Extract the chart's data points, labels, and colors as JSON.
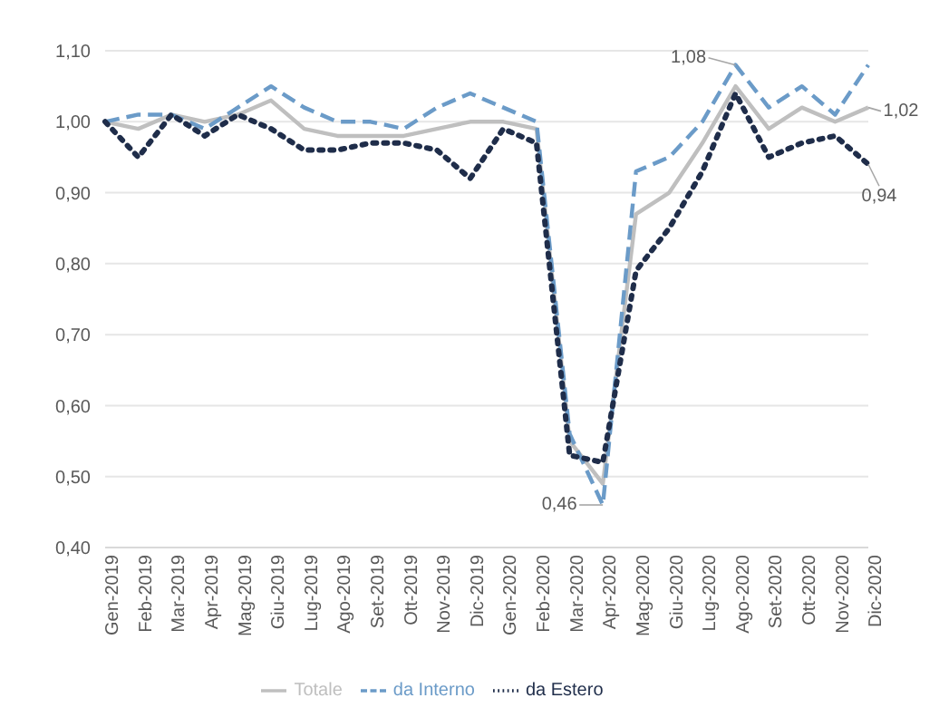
{
  "chart_data": {
    "type": "line",
    "categories": [
      "Gen-2019",
      "Feb-2019",
      "Mar-2019",
      "Apr-2019",
      "Mag-2019",
      "Giu-2019",
      "Lug-2019",
      "Ago-2019",
      "Set-2019",
      "Ott-2019",
      "Nov-2019",
      "Dic-2019",
      "Gen-2020",
      "Feb-2020",
      "Mar-2020",
      "Apr-2020",
      "Mag-2020",
      "Giu-2020",
      "Lug-2020",
      "Ago-2020",
      "Set-2020",
      "Ott-2020",
      "Nov-2020",
      "Dic-2020"
    ],
    "series": [
      {
        "name": "Totale",
        "color": "#bfbfbf",
        "line_style": "solid",
        "values": [
          1.0,
          0.99,
          1.01,
          1.0,
          1.01,
          1.03,
          0.99,
          0.98,
          0.98,
          0.98,
          0.99,
          1.0,
          1.0,
          0.99,
          0.55,
          0.49,
          0.87,
          0.9,
          0.97,
          1.05,
          0.99,
          1.02,
          1.0,
          1.02
        ]
      },
      {
        "name": "da Interno",
        "color": "#6b9bc8",
        "line_style": "dashed",
        "values": [
          1.0,
          1.01,
          1.01,
          0.99,
          1.02,
          1.05,
          1.02,
          1.0,
          1.0,
          0.99,
          1.02,
          1.04,
          1.02,
          1.0,
          0.56,
          0.46,
          0.93,
          0.95,
          1.0,
          1.08,
          1.02,
          1.05,
          1.01,
          1.08
        ]
      },
      {
        "name": "da Estero",
        "color": "#1f2d4a",
        "line_style": "dotted",
        "values": [
          1.0,
          0.95,
          1.01,
          0.98,
          1.01,
          0.99,
          0.96,
          0.96,
          0.97,
          0.97,
          0.96,
          0.92,
          0.99,
          0.97,
          0.53,
          0.52,
          0.79,
          0.85,
          0.93,
          1.04,
          0.95,
          0.97,
          0.98,
          0.94
        ]
      }
    ],
    "ylim": [
      0.4,
      1.1
    ],
    "yticks": [
      {
        "value": 0.4,
        "label": "0,40"
      },
      {
        "value": 0.5,
        "label": "0,50"
      },
      {
        "value": 0.6,
        "label": "0,60"
      },
      {
        "value": 0.7,
        "label": "0,70"
      },
      {
        "value": 0.8,
        "label": "0,80"
      },
      {
        "value": 0.9,
        "label": "0,90"
      },
      {
        "value": 1.0,
        "label": "1,00"
      },
      {
        "value": 1.1,
        "label": "1,10"
      }
    ],
    "grid": "y",
    "legend": "bottom",
    "marker": "none",
    "annotations": [
      {
        "text": "1,08",
        "x": "Ago-2020",
        "y": 1.08
      },
      {
        "text": "0,46",
        "x": "Apr-2020",
        "y": 0.46
      },
      {
        "text": "1,02",
        "x": "Dic-2020",
        "y": 1.02
      },
      {
        "text": "0,94",
        "x": "Dic-2020",
        "y": 0.94
      }
    ]
  }
}
